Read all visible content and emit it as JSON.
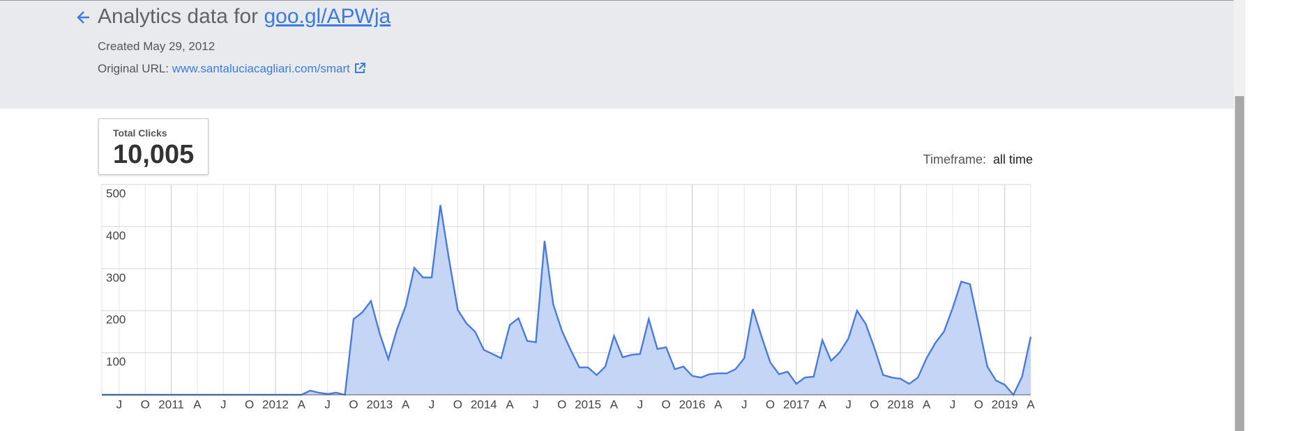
{
  "header": {
    "title": "Analytics data for",
    "short_url": "goo.gl/APWja",
    "created": "Created May 29, 2012",
    "original_url_label": "Original URL:",
    "original_url": "www.santaluciacagliari.com/smart"
  },
  "stats": {
    "label": "Total Clicks",
    "value": "10,005"
  },
  "timeframe": {
    "label": "Timeframe:",
    "value": "all time"
  },
  "chart_data": {
    "type": "area",
    "color": "#4a7bdc",
    "fill": "#c5d5f6",
    "grid": true,
    "categories": [
      null,
      null,
      "J",
      null,
      null,
      "O",
      null,
      null,
      "2011",
      null,
      null,
      "A",
      null,
      null,
      "J",
      null,
      null,
      "O",
      null,
      null,
      "2012",
      null,
      null,
      "A",
      null,
      null,
      "J",
      null,
      null,
      "O",
      null,
      null,
      "2013",
      null,
      null,
      "A",
      null,
      null,
      "J",
      null,
      null,
      "O",
      null,
      null,
      "2014",
      null,
      null,
      "A",
      null,
      null,
      "J",
      null,
      null,
      "O",
      null,
      null,
      "2015",
      null,
      null,
      "A",
      null,
      null,
      "J",
      null,
      null,
      "O",
      null,
      null,
      "2016",
      null,
      null,
      "A",
      null,
      null,
      "J",
      null,
      null,
      "O",
      null,
      null,
      "2017",
      null,
      null,
      "A",
      null,
      null,
      "J",
      null,
      null,
      "O",
      null,
      null,
      "2018",
      null,
      null,
      "A",
      null,
      null,
      "J",
      null,
      null,
      "O",
      null,
      null,
      "2019",
      null,
      null,
      "A"
    ],
    "values": [
      0,
      0,
      0,
      0,
      0,
      0,
      0,
      0,
      0,
      0,
      0,
      0,
      0,
      0,
      0,
      0,
      0,
      0,
      0,
      0,
      0,
      0,
      0,
      0,
      10,
      5,
      2,
      5,
      0,
      180,
      196,
      223,
      146,
      85,
      156,
      211,
      302,
      279,
      279,
      451,
      322,
      202,
      170,
      150,
      107,
      97,
      87,
      166,
      182,
      128,
      125,
      366,
      215,
      152,
      107,
      65,
      65,
      47,
      67,
      140,
      89,
      95,
      97,
      180,
      109,
      113,
      61,
      67,
      45,
      41,
      49,
      51,
      51,
      61,
      87,
      204,
      138,
      77,
      49,
      55,
      26,
      41,
      43,
      130,
      81,
      101,
      134,
      200,
      168,
      111,
      47,
      41,
      38,
      26,
      41,
      87,
      123,
      150,
      206,
      269,
      263,
      166,
      67,
      34,
      24,
      0,
      43,
      138
    ],
    "ylim": [
      0,
      500
    ],
    "yticks": [
      100,
      200,
      300,
      400,
      500
    ]
  }
}
